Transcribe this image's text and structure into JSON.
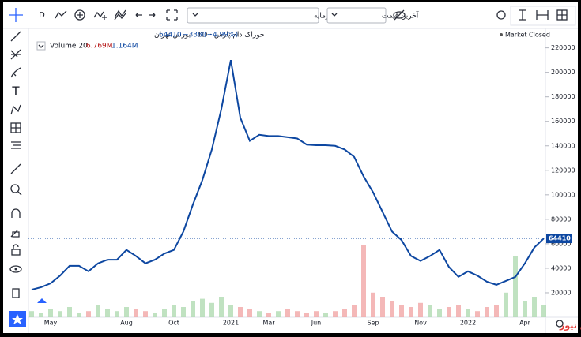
{
  "toolbar": {
    "interval": "D",
    "indicators_menu": "افزایش سرمایه",
    "price_menu": "آخرین قیمت"
  },
  "legend": {
    "symbol": "خوراک دام پارس · 1D · بورس تهران",
    "last": "64410",
    "change": "−3380",
    "change_pct": "(−4.99%)",
    "status": "Market Closed",
    "volume_name": "Volume 20",
    "volume_value": "6.769M",
    "volume_ma": "1.164M"
  },
  "watermark": "بورس نیوز",
  "chart_data": {
    "type": "line",
    "categories": [
      null,
      null,
      "May",
      null,
      null,
      null,
      null,
      null,
      null,
      null,
      "Aug",
      null,
      null,
      null,
      null,
      "Oct",
      null,
      null,
      null,
      null,
      null,
      "2021",
      null,
      null,
      null,
      "Mar",
      null,
      null,
      null,
      null,
      "Jun",
      null,
      null,
      null,
      null,
      null,
      "Sep",
      null,
      null,
      null,
      null,
      "Nov",
      null,
      null,
      null,
      null,
      "2022",
      null,
      null,
      null,
      null,
      null,
      "Apr",
      null,
      null
    ],
    "values": [
      22500,
      24500,
      27700,
      34000,
      42000,
      42000,
      37500,
      44000,
      47000,
      47000,
      55000,
      50000,
      44000,
      47000,
      52000,
      55000,
      70000,
      92000,
      112000,
      137000,
      170000,
      210000,
      163000,
      144000,
      149000,
      148000,
      148000,
      147000,
      146000,
      141000,
      140500,
      140500,
      140000,
      137000,
      131000,
      115000,
      102000,
      86000,
      70000,
      63000,
      50000,
      46000,
      50000,
      55000,
      41000,
      33000,
      37500,
      34000,
      29000,
      26500,
      29700,
      33000,
      44000,
      57000,
      64410
    ],
    "color": "#0d47a1",
    "volume": [
      3,
      2,
      4,
      3,
      5,
      2,
      3,
      6,
      4,
      3,
      5,
      4,
      3,
      2,
      4,
      6,
      5,
      8,
      9,
      7,
      10,
      6,
      5,
      4,
      3,
      2,
      3,
      4,
      3,
      2,
      3,
      2,
      3,
      4,
      6,
      35,
      12,
      10,
      8,
      6,
      5,
      7,
      6,
      4,
      5,
      6,
      4,
      3,
      5,
      6,
      12,
      30,
      8,
      10,
      6
    ],
    "y2lim": [
      0,
      50
    ],
    "ylim": [
      0,
      232000
    ],
    "yticks": [
      20000,
      40000,
      60000,
      80000,
      100000,
      120000,
      140000,
      160000,
      180000,
      200000,
      220000
    ]
  }
}
